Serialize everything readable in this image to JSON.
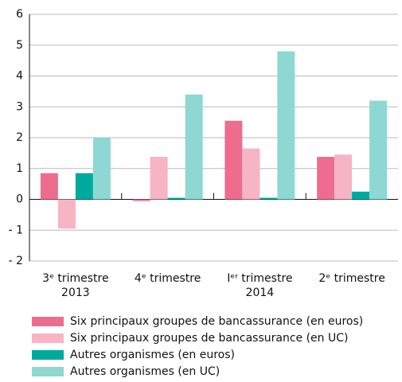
{
  "chart_data": {
    "type": "bar",
    "categories": [
      [
        "3ᵉ trimestre",
        "2013"
      ],
      [
        "4ᵉ trimestre"
      ],
      [
        "Iᵉʳ trimestre",
        "2014"
      ],
      [
        "2ᵉ trimestre"
      ]
    ],
    "series": [
      {
        "name": "Six principaux groupes de bancassurance (en euros)",
        "color": "#ee6d8f",
        "values": [
          0.85,
          -0.05,
          2.55,
          1.38
        ]
      },
      {
        "name": "Six principaux groupes de bancassurance (en UC)",
        "color": "#f7b4c4",
        "values": [
          -0.95,
          1.38,
          1.65,
          1.45
        ]
      },
      {
        "name": "Autres organismes (en euros)",
        "color": "#00a99d",
        "values": [
          0.85,
          0.05,
          0.05,
          0.25
        ]
      },
      {
        "name": "Autres organismes (en UC)",
        "color": "#8ed8d3",
        "values": [
          2.0,
          3.4,
          4.8,
          3.2
        ]
      }
    ],
    "ylim": [
      -2,
      6
    ],
    "yticks": [
      {
        "value": -2,
        "label": "- 2"
      },
      {
        "value": -1,
        "label": "- 1"
      },
      0,
      1,
      2,
      3,
      4,
      5,
      6
    ],
    "grid": true
  }
}
